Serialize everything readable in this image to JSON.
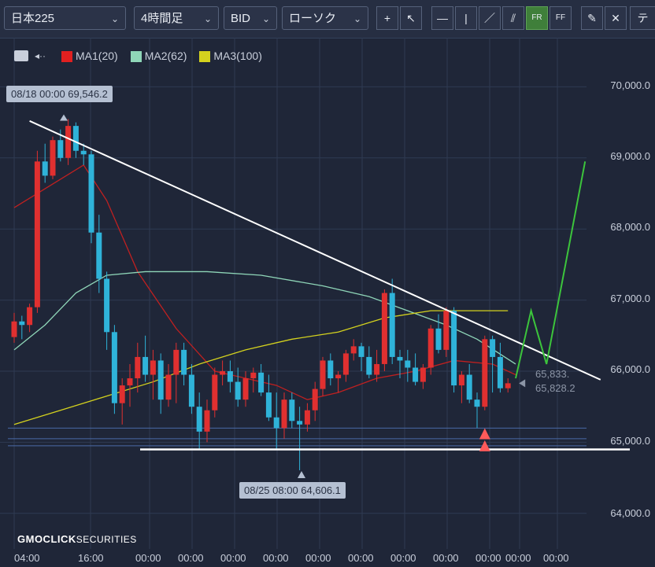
{
  "toolbar": {
    "symbol": "日本225",
    "timeframe": "4時間足",
    "price_type": "BID",
    "chart_type": "ローソク",
    "tools": [
      "+",
      "↖",
      "—",
      "|",
      "／",
      "⫽",
      "FR",
      "FF",
      "✎",
      "✕",
      "テ"
    ]
  },
  "legend": {
    "items": [
      {
        "label": "MA1(20)",
        "color": "#e02020"
      },
      {
        "label": "MA2(62)",
        "color": "#8fd6b8"
      },
      {
        "label": "MA3(100)",
        "color": "#d4d21e"
      }
    ]
  },
  "chart_data": {
    "type": "candlestick",
    "ylim": [
      63700,
      70400
    ],
    "y_ticks": [
      "70,000.0",
      "69,000.0",
      "68,000.0",
      "67,000.0",
      "66,000.0",
      "65,000.0",
      "64,000.0"
    ],
    "y_tick_values": [
      70000,
      69000,
      68000,
      67000,
      66000,
      65000,
      64000
    ],
    "x_ticks": [
      "04:00",
      "16:00",
      "00:00",
      "00:00",
      "00:00",
      "00:00",
      "00:00",
      "00:00",
      "00:00",
      "00:00",
      "00:00",
      "00:00",
      "00:00"
    ],
    "annotations": {
      "high": "08/18 00:00 69,546.2",
      "low": "08/25 08:00 64,606.1"
    },
    "last_values": [
      "65,833.",
      "65,828.2"
    ],
    "candles": [
      [
        66480,
        66820,
        66400,
        66700
      ],
      [
        66700,
        66780,
        66450,
        66650
      ],
      [
        66650,
        66950,
        66550,
        66900
      ],
      [
        66900,
        69100,
        66820,
        68950
      ],
      [
        68950,
        69200,
        68650,
        68750
      ],
      [
        68750,
        69300,
        68700,
        69250
      ],
      [
        69250,
        69400,
        68950,
        69000
      ],
      [
        69000,
        69546,
        68900,
        69450
      ],
      [
        69450,
        69500,
        69000,
        69100
      ],
      [
        69100,
        69200,
        68900,
        69050
      ],
      [
        69050,
        69100,
        67800,
        67950
      ],
      [
        67950,
        68200,
        67100,
        67300
      ],
      [
        67300,
        67400,
        66300,
        66550
      ],
      [
        66550,
        66650,
        65400,
        65550
      ],
      [
        65550,
        65900,
        65250,
        65800
      ],
      [
        65800,
        66100,
        65500,
        65900
      ],
      [
        65900,
        66400,
        65700,
        66200
      ],
      [
        66200,
        66500,
        65850,
        65950
      ],
      [
        65950,
        66300,
        65600,
        66150
      ],
      [
        66150,
        66250,
        65400,
        65600
      ],
      [
        65600,
        66100,
        65500,
        65950
      ],
      [
        65950,
        66400,
        65550,
        66300
      ],
      [
        66300,
        66400,
        65800,
        65950
      ],
      [
        65950,
        66100,
        65400,
        65500
      ],
      [
        65500,
        65700,
        64900,
        65150
      ],
      [
        65150,
        65600,
        65000,
        65450
      ],
      [
        65450,
        66050,
        65350,
        65950
      ],
      [
        65950,
        66150,
        65800,
        66000
      ],
      [
        66000,
        66150,
        65700,
        65850
      ],
      [
        65850,
        66050,
        65500,
        65600
      ],
      [
        65600,
        66000,
        65500,
        65900
      ],
      [
        65900,
        66050,
        65700,
        65980
      ],
      [
        65980,
        66100,
        65650,
        65700
      ],
      [
        65700,
        65950,
        65300,
        65350
      ],
      [
        65350,
        65700,
        64900,
        65200
      ],
      [
        65200,
        65700,
        65050,
        65600
      ],
      [
        65600,
        65700,
        65200,
        65300
      ],
      [
        65300,
        65500,
        64606,
        65250
      ],
      [
        65250,
        65550,
        65150,
        65450
      ],
      [
        65450,
        65850,
        65300,
        65750
      ],
      [
        65750,
        66200,
        65650,
        66150
      ],
      [
        66150,
        66250,
        65800,
        65900
      ],
      [
        65900,
        66000,
        65700,
        65950
      ],
      [
        65950,
        66300,
        65850,
        66250
      ],
      [
        66250,
        66450,
        66150,
        66350
      ],
      [
        66350,
        66400,
        66000,
        66200
      ],
      [
        66200,
        66350,
        65900,
        65950
      ],
      [
        65950,
        66300,
        65850,
        66100
      ],
      [
        66100,
        67150,
        66000,
        67100
      ],
      [
        67100,
        67300,
        66100,
        66200
      ],
      [
        66200,
        66300,
        65900,
        66150
      ],
      [
        66150,
        66300,
        65850,
        66050
      ],
      [
        66050,
        66250,
        65800,
        65850
      ],
      [
        65850,
        66100,
        65750,
        66050
      ],
      [
        66050,
        66650,
        65950,
        66600
      ],
      [
        66600,
        66800,
        66250,
        66300
      ],
      [
        66300,
        66900,
        66200,
        66850
      ],
      [
        66850,
        66900,
        65700,
        65800
      ],
      [
        65800,
        66000,
        65550,
        65950
      ],
      [
        65950,
        66100,
        65550,
        65600
      ],
      [
        65600,
        65700,
        65200,
        65500
      ],
      [
        65500,
        66500,
        65450,
        66450
      ],
      [
        66450,
        66500,
        65700,
        66200
      ],
      [
        66200,
        66400,
        65700,
        65760
      ],
      [
        65760,
        65900,
        65700,
        65830
      ]
    ],
    "series": [
      {
        "name": "MA1(20)",
        "color": "#c02020",
        "values": [
          [
            0,
            68300
          ],
          [
            6,
            68700
          ],
          [
            9,
            68900
          ],
          [
            12,
            68400
          ],
          [
            16,
            67400
          ],
          [
            21,
            66600
          ],
          [
            26,
            66000
          ],
          [
            30,
            65900
          ],
          [
            34,
            65800
          ],
          [
            38,
            65600
          ],
          [
            42,
            65700
          ],
          [
            47,
            65900
          ],
          [
            52,
            66000
          ],
          [
            57,
            66150
          ],
          [
            62,
            66100
          ],
          [
            65,
            65950
          ]
        ]
      },
      {
        "name": "MA2(62)",
        "color": "#8fd6b8",
        "values": [
          [
            0,
            66300
          ],
          [
            4,
            66650
          ],
          [
            8,
            67100
          ],
          [
            12,
            67350
          ],
          [
            17,
            67400
          ],
          [
            25,
            67400
          ],
          [
            32,
            67350
          ],
          [
            40,
            67200
          ],
          [
            46,
            67050
          ],
          [
            51,
            66850
          ],
          [
            56,
            66650
          ],
          [
            60,
            66450
          ],
          [
            65,
            66100
          ]
        ]
      },
      {
        "name": "MA3(100)",
        "color": "#d4d21e",
        "values": [
          [
            0,
            65250
          ],
          [
            6,
            65450
          ],
          [
            12,
            65650
          ],
          [
            18,
            65850
          ],
          [
            24,
            66100
          ],
          [
            30,
            66300
          ],
          [
            36,
            66450
          ],
          [
            42,
            66550
          ],
          [
            48,
            66750
          ],
          [
            54,
            66850
          ],
          [
            60,
            66850
          ],
          [
            64,
            66850
          ]
        ]
      }
    ],
    "trendline_upper": [
      [
        2,
        69520
      ],
      [
        76,
        65880
      ]
    ],
    "support_line": 64900,
    "h_lines": [
      65200,
      65050,
      64950
    ],
    "projection": [
      [
        65,
        65900
      ],
      [
        67,
        66850
      ],
      [
        69,
        66100
      ],
      [
        74,
        68950
      ]
    ],
    "signal_markers": [
      [
        61,
        65120
      ],
      [
        61,
        64950
      ]
    ]
  },
  "logo": {
    "main": "GMOCLICK",
    "sub": "SECURITIES"
  }
}
